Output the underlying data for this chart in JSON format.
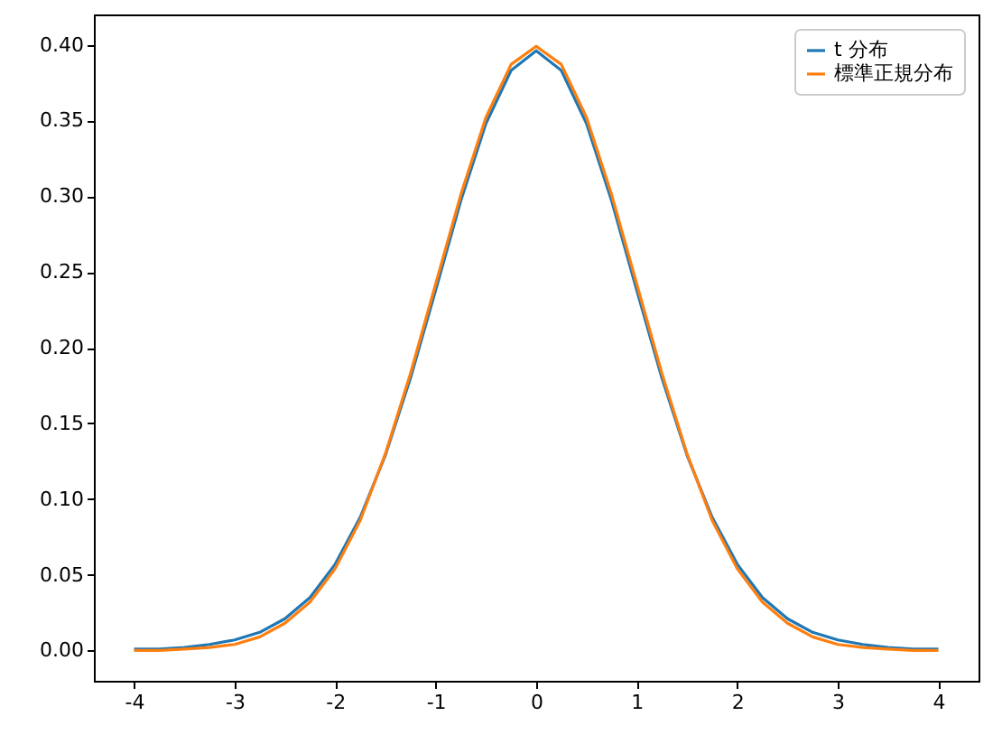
{
  "chart_data": {
    "type": "line",
    "x": [
      -4,
      -3.75,
      -3.5,
      -3.25,
      -3,
      -2.75,
      -2.5,
      -2.25,
      -2,
      -1.75,
      -1.5,
      -1.25,
      -1,
      -0.75,
      -0.5,
      -0.25,
      0,
      0.25,
      0.5,
      0.75,
      1,
      1.25,
      1.5,
      1.75,
      2,
      2.25,
      2.5,
      2.75,
      3,
      3.25,
      3.5,
      3.75,
      4
    ],
    "series": [
      {
        "name": "t 分布",
        "color": "#1f77b4",
        "values": [
          0.001,
          0.001,
          0.002,
          0.004,
          0.007,
          0.012,
          0.021,
          0.035,
          0.057,
          0.088,
          0.129,
          0.18,
          0.238,
          0.297,
          0.348,
          0.383,
          0.396,
          0.383,
          0.348,
          0.297,
          0.238,
          0.18,
          0.129,
          0.088,
          0.057,
          0.035,
          0.021,
          0.012,
          0.007,
          0.004,
          0.002,
          0.001,
          0.001
        ]
      },
      {
        "name": "標準正規分布",
        "color": "#ff7f0e",
        "values": [
          0,
          0,
          0.001,
          0.002,
          0.004,
          0.009,
          0.018,
          0.032,
          0.054,
          0.086,
          0.13,
          0.183,
          0.242,
          0.301,
          0.352,
          0.387,
          0.399,
          0.387,
          0.352,
          0.301,
          0.242,
          0.183,
          0.13,
          0.086,
          0.054,
          0.032,
          0.018,
          0.009,
          0.004,
          0.002,
          0.001,
          0,
          0
        ]
      }
    ],
    "xlim": [
      -4.4,
      4.4
    ],
    "xticks": [
      -4,
      -3,
      -2,
      -1,
      0,
      1,
      2,
      3,
      4
    ],
    "ylim": [
      -0.02,
      0.42
    ],
    "yticks": [
      {
        "value": 0,
        "label": "0.00"
      },
      {
        "value": 0.05,
        "label": "0.05"
      },
      {
        "value": 0.1,
        "label": "0.10"
      },
      {
        "value": 0.15,
        "label": "0.15"
      },
      {
        "value": 0.2,
        "label": "0.20"
      },
      {
        "value": 0.25,
        "label": "0.25"
      },
      {
        "value": 0.3,
        "label": "0.30"
      },
      {
        "value": 0.35,
        "label": "0.35"
      },
      {
        "value": 0.4,
        "label": "0.40"
      }
    ],
    "grid": false,
    "legend": "top right"
  }
}
